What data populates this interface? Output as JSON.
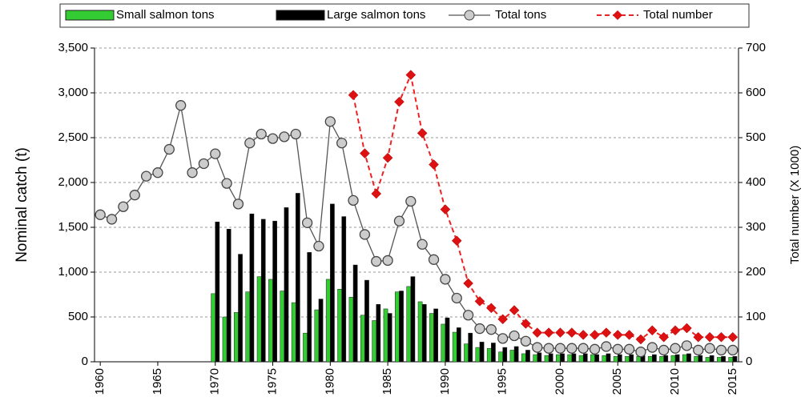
{
  "chart_data": {
    "type": "combo",
    "y_label": "Nominal catch (t)",
    "y2_label": "Total number (X 1000)",
    "x": [
      1960,
      1961,
      1962,
      1963,
      1964,
      1965,
      1966,
      1967,
      1968,
      1969,
      1970,
      1971,
      1972,
      1973,
      1974,
      1975,
      1976,
      1977,
      1978,
      1979,
      1980,
      1981,
      1982,
      1983,
      1984,
      1985,
      1986,
      1987,
      1988,
      1989,
      1990,
      1991,
      1992,
      1993,
      1994,
      1995,
      1996,
      1997,
      1998,
      1999,
      2000,
      2001,
      2002,
      2003,
      2004,
      2005,
      2006,
      2007,
      2008,
      2009,
      2010,
      2011,
      2012,
      2013,
      2014,
      2015
    ],
    "xlim": [
      1959.5,
      2015.5
    ],
    "xticks": [
      1960,
      1965,
      1970,
      1975,
      1980,
      1985,
      1990,
      1995,
      2000,
      2005,
      2010,
      2015
    ],
    "ylim": [
      0,
      3500
    ],
    "yticks": [
      0,
      {
        "value": 500,
        "label": "500"
      },
      {
        "value": 1000,
        "label": "1,000"
      },
      {
        "value": 1500,
        "label": "1,500"
      },
      {
        "value": 2000,
        "label": "2,000"
      },
      {
        "value": 2500,
        "label": "2,500"
      },
      {
        "value": 3000,
        "label": "3,000"
      },
      {
        "value": 3500,
        "label": "3,500"
      }
    ],
    "y2lim": [
      0,
      700
    ],
    "y2ticks": [
      0,
      100,
      200,
      300,
      400,
      500,
      600,
      700
    ],
    "grid": true,
    "series": [
      {
        "name": "Small salmon tons",
        "type": "bar",
        "color": "#33cc33",
        "values": [
          null,
          null,
          null,
          null,
          null,
          null,
          null,
          null,
          null,
          null,
          760,
          500,
          550,
          780,
          950,
          920,
          790,
          660,
          320,
          580,
          920,
          810,
          720,
          520,
          460,
          590,
          780,
          840,
          670,
          540,
          420,
          330,
          200,
          160,
          150,
          110,
          130,
          90,
          80,
          70,
          80,
          80,
          70,
          80,
          70,
          60,
          60,
          60,
          60,
          60,
          70,
          80,
          60,
          50,
          50,
          50
        ]
      },
      {
        "name": "Large salmon tons",
        "type": "bar",
        "color": "#000000",
        "values": [
          null,
          null,
          null,
          null,
          null,
          null,
          null,
          null,
          null,
          null,
          1560,
          1480,
          1200,
          1650,
          1590,
          1570,
          1720,
          1880,
          1220,
          700,
          1760,
          1620,
          1080,
          910,
          640,
          540,
          790,
          950,
          640,
          590,
          490,
          380,
          320,
          220,
          210,
          160,
          170,
          130,
          100,
          90,
          90,
          90,
          90,
          80,
          90,
          80,
          80,
          70,
          80,
          70,
          80,
          90,
          70,
          70,
          60,
          60
        ]
      },
      {
        "name": "Total tons",
        "type": "line",
        "color": "#555555",
        "values": [
          1640,
          1590,
          1730,
          1860,
          2070,
          2110,
          2370,
          2860,
          2110,
          2210,
          2320,
          1990,
          1760,
          2440,
          2540,
          2490,
          2510,
          2540,
          1550,
          1290,
          2680,
          2440,
          1800,
          1420,
          1120,
          1130,
          1570,
          1790,
          1310,
          1140,
          920,
          710,
          520,
          370,
          360,
          260,
          290,
          230,
          160,
          150,
          150,
          150,
          150,
          140,
          170,
          140,
          140,
          110,
          160,
          130,
          150,
          180,
          130,
          150,
          130,
          130
        ]
      },
      {
        "name": "Total number",
        "type": "line",
        "color": "#ee2222",
        "axis": "y2",
        "values": [
          null,
          null,
          null,
          null,
          null,
          null,
          null,
          null,
          null,
          null,
          null,
          null,
          null,
          null,
          null,
          null,
          null,
          null,
          null,
          null,
          null,
          null,
          595,
          465,
          375,
          455,
          580,
          640,
          510,
          440,
          340,
          270,
          175,
          135,
          120,
          95,
          115,
          85,
          65,
          65,
          65,
          65,
          60,
          60,
          65,
          60,
          60,
          50,
          70,
          55,
          70,
          75,
          55,
          55,
          55,
          55
        ]
      }
    ]
  }
}
